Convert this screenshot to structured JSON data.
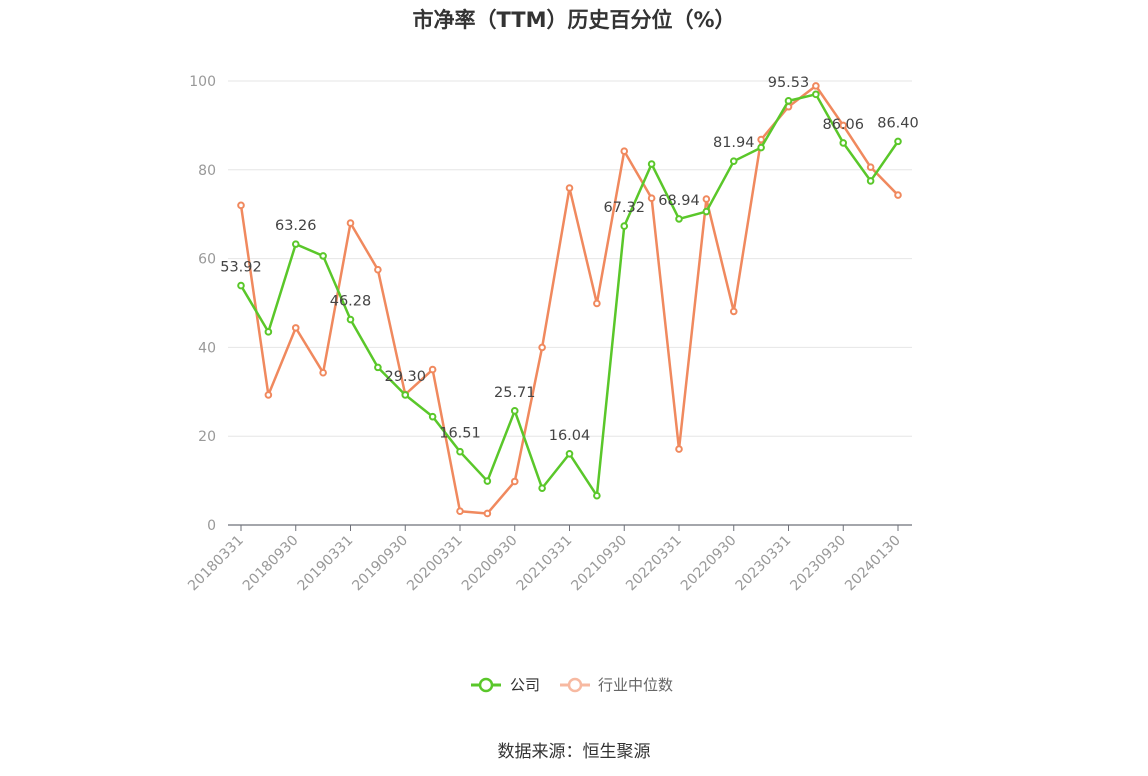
{
  "chart_data": {
    "type": "line",
    "title": "市净率（TTM）历史百分位（%）",
    "ylim": [
      0,
      100
    ],
    "yticks": [
      0,
      20,
      40,
      60,
      80,
      100
    ],
    "grid": true,
    "legend_position": "bottom",
    "x": [
      "20180331",
      "20180630",
      "20180930",
      "20181231",
      "20190331",
      "20190630",
      "20190930",
      "20191231",
      "20200331",
      "20200630",
      "20200930",
      "20201231",
      "20210331",
      "20210630",
      "20210930",
      "20211231",
      "20220331",
      "20220630",
      "20220930",
      "20221231",
      "20230331",
      "20230630",
      "20230930",
      "20231231",
      "20240130"
    ],
    "xtick_labels": [
      "20180331",
      "20180930",
      "20190331",
      "20190930",
      "20200331",
      "20200930",
      "20210331",
      "20210930",
      "20220331",
      "20220930",
      "20230331",
      "20230930",
      "20240130"
    ],
    "series": [
      {
        "name": "公司",
        "color": "#5ac72a",
        "values": [
          53.92,
          43.5,
          63.26,
          60.6,
          46.28,
          35.5,
          29.3,
          24.4,
          16.51,
          9.9,
          25.71,
          8.3,
          16.04,
          6.6,
          67.32,
          81.3,
          68.94,
          70.6,
          81.94,
          85.0,
          95.53,
          97.0,
          86.06,
          77.5,
          86.4
        ],
        "labels": {
          "0": "53.92",
          "2": "63.26",
          "4": "46.28",
          "6": "29.30",
          "8": "16.51",
          "10": "25.71",
          "12": "16.04",
          "14": "67.32",
          "16": "68.94",
          "18": "81.94",
          "20": "95.53",
          "22": "86.06",
          "24": "86.40"
        }
      },
      {
        "name": "行业中位数",
        "color": "#f0895e",
        "values": [
          72.0,
          29.3,
          44.4,
          34.3,
          68.0,
          57.5,
          29.4,
          35.0,
          3.1,
          2.6,
          9.8,
          40.0,
          75.9,
          49.9,
          84.2,
          73.6,
          17.1,
          73.4,
          48.1,
          86.8,
          94.2,
          98.9,
          90.0,
          80.6,
          74.3
        ]
      }
    ]
  },
  "legend": {
    "company_label": "公司",
    "industry_label": "行业中位数",
    "company_color": "#5ac72a",
    "industry_color": "#f7b9a1"
  },
  "source": "数据来源：恒生聚源"
}
